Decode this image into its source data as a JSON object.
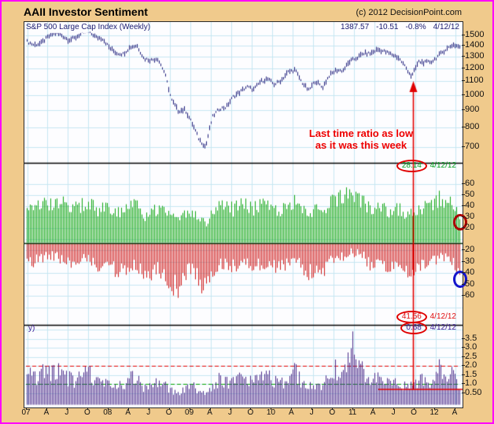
{
  "header": {
    "title": "AAII Investor Sentiment",
    "copyright": "(c) 2012 DecisionPoint.com"
  },
  "quote_bar": {
    "symbol_label": "S&P 500 Large Cap Index (Weekly)",
    "last": "1387.57",
    "change": "-10.51",
    "change_pct": "-0.8%",
    "date": "4/12/12"
  },
  "annotations": {
    "note_line1": "Last time ratio as low",
    "note_line2": "as it was this week",
    "bulls_value": "28.14",
    "bulls_date": "4/12/12",
    "bears_value": "41.56",
    "bears_date": "4/12/12",
    "ratio_value": "0.68",
    "ratio_date": "4/12/12",
    "ratio_panel_label": "y)"
  },
  "axes": {
    "sp_ticks": [
      "1500",
      "1400",
      "1300",
      "1200",
      "1100",
      "1000",
      "900",
      "800",
      "700"
    ],
    "bulls_ticks": [
      "60",
      "50",
      "40",
      "30",
      "20"
    ],
    "bears_ticks": [
      "20",
      "30",
      "40",
      "50",
      "60"
    ],
    "ratio_ticks": [
      "3.5",
      "3.0",
      "2.5",
      "2.0",
      "1.5",
      "1.0",
      "0.50"
    ],
    "date_ticks": [
      "07",
      "A",
      "J",
      "O",
      "08",
      "A",
      "J",
      "O",
      "09",
      "A",
      "J",
      "O",
      "10",
      "A",
      "J",
      "O",
      "11",
      "A",
      "J",
      "O",
      "12",
      "A"
    ]
  },
  "colors": {
    "background_tan": "#F0CA8C",
    "outer_border_magenta": "#FF00FF",
    "grid": "#C6E6F2",
    "price_bars": "#1C1C7A",
    "bulls_bars": "#0FA612",
    "bears_bars": "#CE1A1A",
    "ratio_bars": "#4B2B8A",
    "separator": "#000000",
    "annotation_red": "#EE0000",
    "annotation_green": "#00A01E",
    "annotation_purple": "#3A1A96",
    "ref_line_red": "#E00000",
    "ref_line_green": "#00A000"
  },
  "chart_data": [
    {
      "type": "line",
      "name": "S&P 500 Large Cap Index (Weekly)",
      "y_scale": "log",
      "ylim": [
        650,
        1600
      ],
      "x_start": "2007-01",
      "x_end": "2012-04",
      "x_freq": "monthly",
      "values": [
        1438,
        1406,
        1420,
        1482,
        1530,
        1503,
        1455,
        1474,
        1527,
        1549,
        1481,
        1468,
        1378,
        1330,
        1322,
        1385,
        1400,
        1280,
        1267,
        1282,
        1166,
        968,
        896,
        903,
        825,
        740,
        700,
        860,
        910,
        919,
        987,
        1020,
        1057,
        1036,
        1095,
        1115,
        1073,
        1104,
        1169,
        1186,
        1089,
        1030,
        1101,
        1049,
        1141,
        1183,
        1180,
        1257,
        1286,
        1327,
        1325,
        1363,
        1345,
        1320,
        1292,
        1218,
        1131,
        1253,
        1246,
        1257,
        1312,
        1365,
        1408,
        1387.57
      ],
      "last": 1387.57
    },
    {
      "type": "bar",
      "name": "AAII Bulls percent (green bars)",
      "ylim": [
        20,
        60
      ],
      "x_start": "2007-01",
      "x_end": "2012-04",
      "x_freq": "monthly",
      "values": [
        42,
        40,
        44,
        40,
        43,
        42,
        40,
        38,
        41,
        45,
        35,
        39,
        36,
        34,
        33,
        42,
        40,
        31,
        36,
        38,
        38,
        30,
        27,
        34,
        36,
        27,
        24,
        33,
        40,
        39,
        37,
        42,
        40,
        38,
        42,
        41,
        38,
        35,
        41,
        45,
        37,
        32,
        36,
        32,
        44,
        46,
        47,
        52,
        51,
        44,
        38,
        42,
        38,
        34,
        38,
        34,
        33,
        40,
        38,
        40,
        48,
        44,
        42,
        28.14
      ],
      "last": 28.14
    },
    {
      "type": "bar",
      "name": "AAII Bears percent (red bars, inverted scale)",
      "ylim": [
        20,
        60
      ],
      "inverted": true,
      "x_start": "2007-01",
      "x_end": "2012-04",
      "x_freq": "monthly",
      "values": [
        28,
        30,
        28,
        26,
        25,
        28,
        31,
        34,
        29,
        27,
        35,
        31,
        36,
        38,
        40,
        32,
        33,
        42,
        42,
        36,
        40,
        50,
        53,
        42,
        37,
        46,
        55,
        40,
        33,
        34,
        35,
        30,
        32,
        35,
        32,
        30,
        33,
        35,
        29,
        27,
        34,
        40,
        36,
        42,
        28,
        26,
        25,
        22,
        22,
        26,
        32,
        28,
        32,
        36,
        32,
        40,
        40,
        32,
        36,
        32,
        25,
        27,
        28,
        41.56
      ],
      "last": 41.56
    },
    {
      "type": "bar",
      "name": "AAII Bull/Bear Ratio (purple bars)",
      "ylim": [
        0,
        4
      ],
      "x_start": "2007-01",
      "x_end": "2012-04",
      "x_freq": "monthly",
      "values": [
        1.5,
        1.33,
        1.57,
        1.54,
        1.72,
        1.5,
        1.29,
        1.12,
        1.41,
        1.67,
        1.0,
        1.26,
        1.0,
        0.89,
        0.83,
        1.31,
        1.21,
        0.74,
        0.86,
        1.06,
        0.95,
        0.6,
        0.51,
        0.81,
        0.97,
        0.59,
        0.44,
        0.83,
        1.21,
        1.15,
        1.06,
        1.4,
        1.25,
        1.09,
        1.31,
        1.37,
        1.15,
        1.0,
        1.41,
        1.67,
        1.09,
        0.8,
        1.0,
        0.76,
        1.57,
        1.77,
        1.88,
        2.36,
        2.32,
        1.69,
        1.19,
        1.5,
        1.19,
        0.94,
        1.19,
        0.85,
        0.83,
        1.25,
        1.06,
        1.25,
        1.92,
        1.63,
        1.5,
        0.68
      ],
      "last": 0.68,
      "max_spike": 3.9,
      "reference_lines": [
        2.0,
        1.0
      ],
      "current_level_line": 0.68
    }
  ]
}
